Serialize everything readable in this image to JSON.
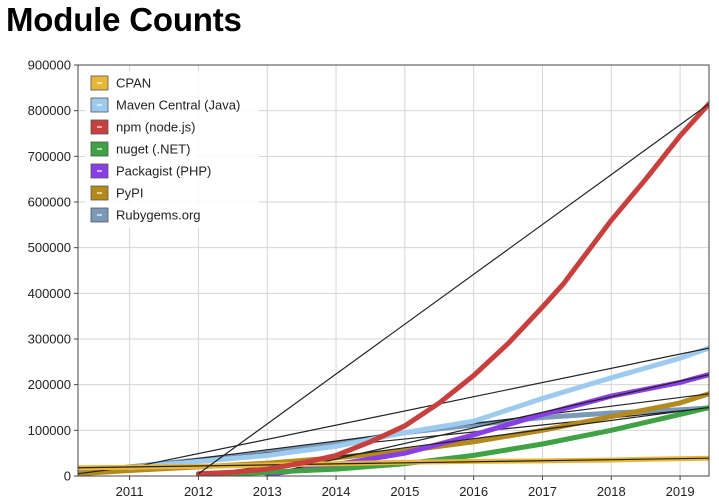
{
  "page": {
    "title": "Module Counts"
  },
  "chart_data": {
    "type": "line",
    "title": "Module Counts",
    "xlabel": "",
    "ylabel": "",
    "x_ticks": [
      "2011",
      "2012",
      "2013",
      "2014",
      "2015",
      "2016",
      "2017",
      "2018",
      "2019"
    ],
    "y_ticks": [
      "0",
      "100000",
      "200000",
      "300000",
      "400000",
      "500000",
      "600000",
      "700000",
      "800000",
      "900000"
    ],
    "xlim": [
      2010.25,
      2019.42
    ],
    "ylim": [
      0,
      900000
    ],
    "grid": true,
    "legend_position": "top-left",
    "series": [
      {
        "name": "CPAN",
        "color": "#e8b73a",
        "points": [
          [
            2010.25,
            18000
          ],
          [
            2011.0,
            19000
          ],
          [
            2012.0,
            21000
          ],
          [
            2013.0,
            24000
          ],
          [
            2014.0,
            27000
          ],
          [
            2015.0,
            30000
          ],
          [
            2016.0,
            32000
          ],
          [
            2017.0,
            33000
          ],
          [
            2018.0,
            35000
          ],
          [
            2018.6,
            37000
          ],
          [
            2019.42,
            39000
          ]
        ]
      },
      {
        "name": "Maven Central (Java)",
        "color": "#9ccbef",
        "points": [
          [
            2011.0,
            18000
          ],
          [
            2012.0,
            32000
          ],
          [
            2013.0,
            45000
          ],
          [
            2014.0,
            65000
          ],
          [
            2015.0,
            95000
          ],
          [
            2016.0,
            120000
          ],
          [
            2017.0,
            170000
          ],
          [
            2018.0,
            215000
          ],
          [
            2019.0,
            258000
          ],
          [
            2019.42,
            280000
          ]
        ]
      },
      {
        "name": "npm (node.js)",
        "color": "#c8403e",
        "points": [
          [
            2012.0,
            5000
          ],
          [
            2012.5,
            8000
          ],
          [
            2013.0,
            15000
          ],
          [
            2013.5,
            28000
          ],
          [
            2014.0,
            45000
          ],
          [
            2014.5,
            75000
          ],
          [
            2015.0,
            110000
          ],
          [
            2015.5,
            160000
          ],
          [
            2016.0,
            220000
          ],
          [
            2016.5,
            290000
          ],
          [
            2017.0,
            370000
          ],
          [
            2017.3,
            420000
          ],
          [
            2017.5,
            460000
          ],
          [
            2018.0,
            560000
          ],
          [
            2018.5,
            650000
          ],
          [
            2019.0,
            745000
          ],
          [
            2019.42,
            815000
          ]
        ]
      },
      {
        "name": "nuget (.NET)",
        "color": "#3fa244",
        "points": [
          [
            2012.0,
            2000
          ],
          [
            2013.0,
            8000
          ],
          [
            2014.0,
            15000
          ],
          [
            2015.0,
            27000
          ],
          [
            2016.0,
            45000
          ],
          [
            2017.0,
            70000
          ],
          [
            2018.0,
            100000
          ],
          [
            2019.0,
            135000
          ],
          [
            2019.42,
            150000
          ]
        ]
      },
      {
        "name": "Packagist (PHP)",
        "color": "#8a3ee6",
        "points": [
          [
            2013.0,
            3000
          ],
          [
            2014.0,
            25000
          ],
          [
            2015.0,
            50000
          ],
          [
            2016.0,
            90000
          ],
          [
            2017.0,
            135000
          ],
          [
            2018.0,
            175000
          ],
          [
            2019.0,
            205000
          ],
          [
            2019.42,
            222000
          ]
        ]
      },
      {
        "name": "PyPI",
        "color": "#b58a1c",
        "points": [
          [
            2010.25,
            5000
          ],
          [
            2011.0,
            12000
          ],
          [
            2012.0,
            20000
          ],
          [
            2013.0,
            28000
          ],
          [
            2014.0,
            40000
          ],
          [
            2015.0,
            55000
          ],
          [
            2016.0,
            75000
          ],
          [
            2017.0,
            100000
          ],
          [
            2018.0,
            130000
          ],
          [
            2019.0,
            160000
          ],
          [
            2019.42,
            180000
          ]
        ]
      },
      {
        "name": "Rubygems.org",
        "color": "#7b99b8",
        "points": [
          [
            2010.25,
            8000
          ],
          [
            2011.0,
            20000
          ],
          [
            2012.0,
            35000
          ],
          [
            2013.0,
            52000
          ],
          [
            2014.0,
            72000
          ],
          [
            2014.6,
            85000
          ],
          [
            2015.0,
            95000
          ],
          [
            2016.0,
            112000
          ],
          [
            2016.5,
            120000
          ],
          [
            2017.0,
            128000
          ],
          [
            2018.0,
            138000
          ],
          [
            2019.0,
            145000
          ],
          [
            2019.42,
            149000
          ]
        ]
      }
    ]
  }
}
